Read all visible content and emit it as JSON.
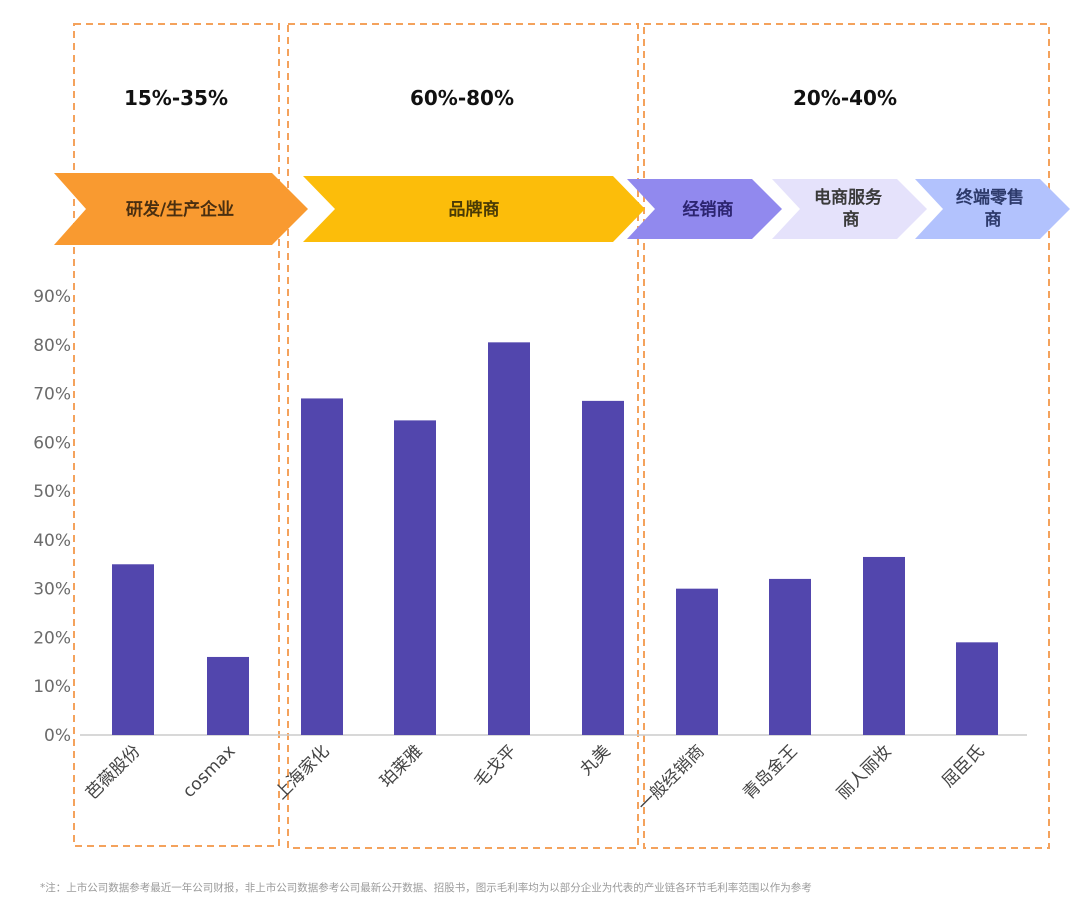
{
  "chart_data": {
    "type": "bar",
    "categories": [
      "芭薇股份",
      "cosmax",
      "上海家化",
      "珀莱雅",
      "毛戈平",
      "丸美",
      "一般经销商",
      "青岛金王",
      "丽人丽妆",
      "屈臣氏"
    ],
    "values": [
      35,
      16,
      69,
      64.5,
      80.5,
      68.5,
      30,
      32,
      36.5,
      19
    ],
    "y_unit": "%",
    "ylim": [
      0,
      90
    ],
    "yticks": [
      "0%",
      "10%",
      "20%",
      "30%",
      "40%",
      "50%",
      "60%",
      "70%",
      "80%",
      "90%"
    ],
    "grid": false,
    "bar_color": "#5246ad"
  },
  "groups": [
    {
      "range_label": "15%-35%",
      "stages": [
        {
          "label": "研发/生产企业",
          "fill": "#f99a30",
          "text_color": "#4a2f10"
        }
      ]
    },
    {
      "range_label": "60%-80%",
      "stages": [
        {
          "label": "品牌商",
          "fill": "#fcbd0a",
          "text_color": "#4a3a05"
        }
      ]
    },
    {
      "range_label": "20%-40%",
      "stages": [
        {
          "label": "经销商",
          "fill": "#9189ee",
          "text_color": "#2c2470"
        },
        {
          "label": "电商服务商",
          "fill": "#e5e2fb",
          "text_color": "#3a3a3a"
        },
        {
          "label": "终端零售商",
          "fill": "#b2c2fd",
          "text_color": "#2d3a6b"
        }
      ]
    }
  ],
  "box_color": "#f4a25c",
  "footnote": "*注：上市公司数据参考最近一年公司财报，非上市公司数据参考公司最新公开数据、招股书，图示毛利率均为以部分企业为代表的产业链各环节毛利率范围以作为参考"
}
